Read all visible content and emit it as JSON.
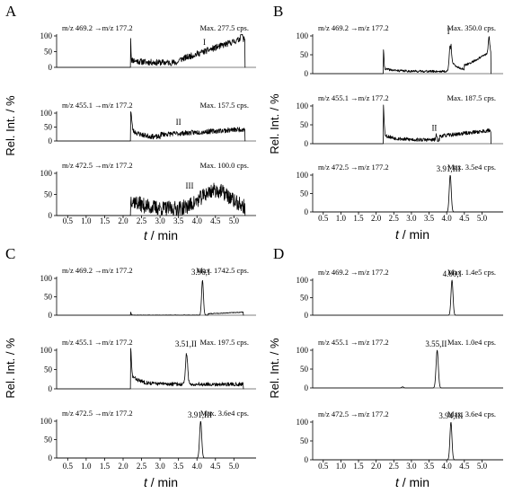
{
  "chart_data": [
    {
      "panel": "A",
      "type": "line",
      "xlabel_italic": "t",
      "xlabel_unit": "/ min",
      "ylabel": "Rel. Int. / %",
      "xlim": [
        0.2,
        5.6
      ],
      "x_ticks": [
        0.5,
        1.0,
        1.5,
        2.0,
        2.5,
        3.0,
        3.5,
        4.0,
        4.5,
        5.0
      ],
      "x_tick_labels": [
        "0.5",
        "1.0",
        "1.5",
        "2.0",
        "2.5",
        "3.0",
        "3.5",
        "4.0",
        "4.5",
        "5.0"
      ],
      "traces": [
        {
          "transition": "m/z 469.2 →m/z 177.2",
          "max": "Max. 277.5 cps.",
          "peak_label": "I",
          "peak_x": 4.2,
          "peak_y": 60,
          "ylim": [
            0,
            100
          ],
          "y_ticks": [
            0,
            50,
            100
          ],
          "baseline_end": 2.2,
          "signal_end": 5.3,
          "noise_seed": 11,
          "features": [
            {
              "type": "spike",
              "x": 2.2,
              "h": 90,
              "w": 0.015
            },
            {
              "type": "step",
              "x": 2.2,
              "base": 15,
              "decay": 0.25,
              "amp": 10
            },
            {
              "type": "ramp",
              "x0": 3.5,
              "x1": 5.2,
              "y0": 8,
              "y1": 75
            },
            {
              "type": "spike",
              "x": 5.2,
              "h": 25,
              "w": 0.03
            }
          ],
          "noise": 10
        },
        {
          "transition": "m/z 455.1 →m/z 177.2",
          "max": "Max. 157.5 cps.",
          "peak_label": "II",
          "peak_x": 3.5,
          "peak_y": 45,
          "ylim": [
            0,
            100
          ],
          "y_ticks": [
            0,
            50,
            100
          ],
          "baseline_end": 2.2,
          "signal_end": 5.3,
          "noise_seed": 23,
          "features": [
            {
              "type": "spike",
              "x": 2.2,
              "h": 75,
              "w": 0.04
            },
            {
              "type": "step",
              "x": 2.2,
              "base": 12,
              "decay": 0.3,
              "amp": 30
            },
            {
              "type": "ramp",
              "x0": 3.0,
              "x1": 5.2,
              "y0": 10,
              "y1": 30
            }
          ],
          "noise": 9
        },
        {
          "transition": "m/z 472.5 →m/z 177.2",
          "max": "Max. 100.0 cps.",
          "peak_label": "III",
          "peak_x": 3.8,
          "peak_y": 55,
          "ylim": [
            0,
            100
          ],
          "y_ticks": [
            0,
            50,
            100
          ],
          "baseline_end": 2.2,
          "signal_end": 5.3,
          "noise_seed": 37,
          "features": [
            {
              "type": "step",
              "x": 2.2,
              "base": 15,
              "decay": 0.35,
              "amp": 25
            },
            {
              "type": "hump",
              "x": 4.5,
              "h": 45,
              "w": 0.55
            }
          ],
          "noise": 18
        }
      ]
    },
    {
      "panel": "B",
      "type": "line",
      "xlabel_italic": "t",
      "xlabel_unit": "/ min",
      "ylabel": "Rel. Int. / %",
      "xlim": [
        0.2,
        5.6
      ],
      "x_ticks": [
        0.5,
        1.0,
        1.5,
        2.0,
        2.5,
        3.0,
        3.5,
        4.0,
        4.5,
        5.0
      ],
      "x_tick_labels": [
        "0.5",
        "1.0",
        "1.5",
        "2.0",
        "2.5",
        "3.0",
        "3.5",
        "4.0",
        "4.5",
        "5.0"
      ],
      "traces": [
        {
          "transition": "m/z 469.2 →m/z 177.2",
          "max": "Max. 350.0 cps.",
          "peak_label": "I",
          "peak_x": 4.05,
          "peak_y": 95,
          "ylim": [
            0,
            100
          ],
          "y_ticks": [
            0,
            50,
            100
          ],
          "baseline_end": 2.2,
          "signal_end": 5.25,
          "noise_seed": 41,
          "features": [
            {
              "type": "spike",
              "x": 1.95,
              "h": 8,
              "w": 0.01
            },
            {
              "type": "spike",
              "x": 2.2,
              "h": 55,
              "w": 0.025
            },
            {
              "type": "step",
              "x": 2.2,
              "base": 6,
              "decay": 0.3,
              "amp": 8
            },
            {
              "type": "peak",
              "x": 4.1,
              "h": 70,
              "w": 0.04
            },
            {
              "type": "decay",
              "x": 4.12,
              "h": 25,
              "tau": 0.25
            },
            {
              "type": "ramp",
              "x0": 4.5,
              "x1": 5.2,
              "y0": 10,
              "y1": 50
            },
            {
              "type": "spike",
              "x": 5.2,
              "h": 40,
              "w": 0.03
            }
          ],
          "noise": 3
        },
        {
          "transition": "m/z 455.1 →m/z 177.2",
          "max": "Max. 187.5 cps.",
          "peak_label": "II",
          "peak_x": 3.65,
          "peak_y": 25,
          "ylim": [
            0,
            100
          ],
          "y_ticks": [
            0,
            50,
            100
          ],
          "baseline_end": 2.2,
          "signal_end": 5.25,
          "noise_seed": 53,
          "features": [
            {
              "type": "spike",
              "x": 2.2,
              "h": 85,
              "w": 0.03
            },
            {
              "type": "step",
              "x": 2.2,
              "base": 10,
              "decay": 0.3,
              "amp": 15
            },
            {
              "type": "peak",
              "x": 3.7,
              "h": 12,
              "w": 0.02
            },
            {
              "type": "ramp",
              "x0": 3.8,
              "x1": 5.2,
              "y0": 10,
              "y1": 25
            }
          ],
          "noise": 5
        },
        {
          "transition": "m/z 472.5 →m/z 177.2",
          "max": "Max. 3.5e4 cps.",
          "peak_label": "3.91,III",
          "peak_x": 4.05,
          "peak_y": 100,
          "ylim": [
            0,
            100
          ],
          "y_ticks": [
            0,
            50,
            100
          ],
          "baseline_end": 0.2,
          "signal_end": 5.6,
          "noise_seed": 61,
          "features": [
            {
              "type": "peak",
              "x": 4.1,
              "h": 100,
              "w": 0.04
            }
          ],
          "noise": 0
        }
      ]
    },
    {
      "panel": "C",
      "type": "line",
      "xlabel_italic": "t",
      "xlabel_unit": "/ min",
      "ylabel": "Rel. Int. / %",
      "xlim": [
        0.2,
        5.6
      ],
      "x_ticks": [
        0.5,
        1.0,
        1.5,
        2.0,
        2.5,
        3.0,
        3.5,
        4.0,
        4.5,
        5.0
      ],
      "x_tick_labels": [
        "0.5",
        "1.0",
        "1.5",
        "2.0",
        "2.5",
        "3.0",
        "3.5",
        "4.0",
        "4.5",
        "5.0"
      ],
      "traces": [
        {
          "transition": "m/z 469.2 →m/z 177.2",
          "max": "Max. 1742.5 cps.",
          "peak_label": "3.96,I",
          "peak_x": 4.1,
          "peak_y": 100,
          "ylim": [
            0,
            100
          ],
          "y_ticks": [
            0,
            50,
            100
          ],
          "baseline_end": 2.2,
          "signal_end": 5.25,
          "noise_seed": 71,
          "features": [
            {
              "type": "spike",
              "x": 2.2,
              "h": 10,
              "w": 0.02
            },
            {
              "type": "peak",
              "x": 4.15,
              "h": 95,
              "w": 0.035
            },
            {
              "type": "ramp",
              "x0": 4.3,
              "x1": 5.2,
              "y0": 4,
              "y1": 8
            }
          ],
          "noise": 1
        },
        {
          "transition": "m/z 455.1 →m/z 177.2",
          "max": "Max. 197.5 cps.",
          "peak_label": "3.51,II",
          "peak_x": 3.7,
          "peak_y": 100,
          "ylim": [
            0,
            100
          ],
          "y_ticks": [
            0,
            50,
            100
          ],
          "baseline_end": 2.2,
          "signal_end": 5.25,
          "noise_seed": 83,
          "features": [
            {
              "type": "spike",
              "x": 2.2,
              "h": 75,
              "w": 0.03
            },
            {
              "type": "step",
              "x": 2.2,
              "base": 12,
              "decay": 0.25,
              "amp": 25
            },
            {
              "type": "peak",
              "x": 3.72,
              "h": 80,
              "w": 0.04
            }
          ],
          "noise": 5
        },
        {
          "transition": "m/z 472.5 →m/z 177.2",
          "max": "Max. 3.6e4 cps.",
          "peak_label": "3.91,III",
          "peak_x": 4.08,
          "peak_y": 100,
          "ylim": [
            0,
            100
          ],
          "y_ticks": [
            0,
            50,
            100
          ],
          "baseline_end": 0.2,
          "signal_end": 5.6,
          "noise_seed": 91,
          "features": [
            {
              "type": "peak",
              "x": 4.1,
              "h": 100,
              "w": 0.04
            }
          ],
          "noise": 0
        }
      ]
    },
    {
      "panel": "D",
      "type": "line",
      "xlabel_italic": "t",
      "xlabel_unit": "/ min",
      "ylabel": "Rel. Int. / %",
      "xlim": [
        0.2,
        5.6
      ],
      "x_ticks": [
        0.5,
        1.0,
        1.5,
        2.0,
        2.5,
        3.0,
        3.5,
        4.0,
        4.5,
        5.0
      ],
      "x_tick_labels": [
        "0.5",
        "1.0",
        "1.5",
        "2.0",
        "2.5",
        "3.0",
        "3.5",
        "4.0",
        "4.5",
        "5.0"
      ],
      "traces": [
        {
          "transition": "m/z 469.2 →m/z 177.2",
          "max": "Max. 1.4e5 cps.",
          "peak_label": "4.00,I",
          "peak_x": 4.15,
          "peak_y": 100,
          "ylim": [
            0,
            100
          ],
          "y_ticks": [
            0,
            50,
            100
          ],
          "baseline_end": 0.2,
          "signal_end": 5.6,
          "noise_seed": 101,
          "features": [
            {
              "type": "peak",
              "x": 4.15,
              "h": 100,
              "w": 0.04
            }
          ],
          "noise": 0
        },
        {
          "transition": "m/z 455.1 →m/z 177.2",
          "max": "Max. 1.0e4 cps.",
          "peak_label": "3.55,II",
          "peak_x": 3.7,
          "peak_y": 100,
          "ylim": [
            0,
            100
          ],
          "y_ticks": [
            0,
            50,
            100
          ],
          "baseline_end": 0.2,
          "signal_end": 5.6,
          "noise_seed": 111,
          "features": [
            {
              "type": "peak",
              "x": 2.75,
              "h": 3,
              "w": 0.04
            },
            {
              "type": "peak",
              "x": 3.73,
              "h": 100,
              "w": 0.045
            }
          ],
          "noise": 0
        },
        {
          "transition": "m/z 472.5 →m/z 177.2",
          "max": "Max. 3.6e4 cps.",
          "peak_label": "3.94,III",
          "peak_x": 4.12,
          "peak_y": 100,
          "ylim": [
            0,
            100
          ],
          "y_ticks": [
            0,
            50,
            100
          ],
          "baseline_end": 0.2,
          "signal_end": 5.6,
          "noise_seed": 121,
          "features": [
            {
              "type": "peak",
              "x": 4.12,
              "h": 100,
              "w": 0.04
            }
          ],
          "noise": 0
        }
      ]
    }
  ]
}
